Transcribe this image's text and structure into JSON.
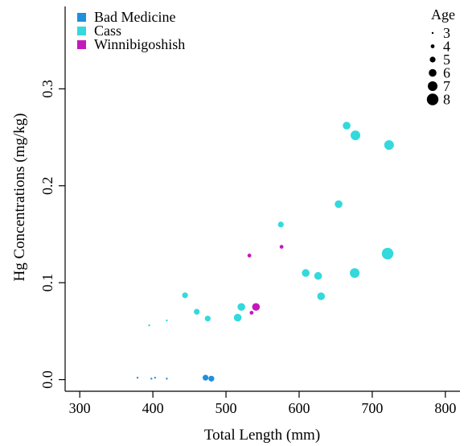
{
  "chart_data": {
    "type": "scatter",
    "xlabel": "Total Length (mm)",
    "ylabel": "Hg Concentrations (mg/kg)",
    "xlim": [
      280,
      820
    ],
    "ylim": [
      -0.012,
      0.385
    ],
    "xticks": [
      300,
      400,
      500,
      600,
      700,
      800
    ],
    "yticks": [
      0.0,
      0.1,
      0.2,
      0.3
    ],
    "xtick_labels": [
      "300",
      "400",
      "500",
      "600",
      "700",
      "800"
    ],
    "ytick_labels": [
      "0.0",
      "0.1",
      "0.2",
      "0.3"
    ],
    "grid": false,
    "legend_position": "top-left",
    "size_legend": {
      "title": "Age",
      "position": "top-right",
      "values": [
        3,
        4,
        5,
        6,
        7,
        8
      ],
      "labels": [
        "3",
        "4",
        "5",
        "6",
        "7",
        "8"
      ]
    },
    "series": [
      {
        "name": "Bad Medicine",
        "color": "#1f8fde",
        "points": [
          {
            "x": 379,
            "y": 0.002,
            "age": 3
          },
          {
            "x": 398,
            "y": 0.001,
            "age": 3
          },
          {
            "x": 403,
            "y": 0.002,
            "age": 3
          },
          {
            "x": 419,
            "y": 0.001,
            "age": 3
          },
          {
            "x": 472,
            "y": 0.002,
            "age": 5
          },
          {
            "x": 480,
            "y": 0.001,
            "age": 5
          }
        ]
      },
      {
        "name": "Cass",
        "color": "#33d9dc",
        "points": [
          {
            "x": 395,
            "y": 0.056,
            "age": 3
          },
          {
            "x": 419,
            "y": 0.061,
            "age": 3
          },
          {
            "x": 444,
            "y": 0.087,
            "age": 5
          },
          {
            "x": 460,
            "y": 0.07,
            "age": 5
          },
          {
            "x": 475,
            "y": 0.063,
            "age": 5
          },
          {
            "x": 516,
            "y": 0.064,
            "age": 6
          },
          {
            "x": 521,
            "y": 0.075,
            "age": 6
          },
          {
            "x": 575,
            "y": 0.16,
            "age": 5
          },
          {
            "x": 609,
            "y": 0.11,
            "age": 6
          },
          {
            "x": 626,
            "y": 0.107,
            "age": 6
          },
          {
            "x": 630,
            "y": 0.086,
            "age": 6
          },
          {
            "x": 654,
            "y": 0.181,
            "age": 6
          },
          {
            "x": 665,
            "y": 0.262,
            "age": 6
          },
          {
            "x": 677,
            "y": 0.252,
            "age": 7
          },
          {
            "x": 676,
            "y": 0.11,
            "age": 7
          },
          {
            "x": 723,
            "y": 0.242,
            "age": 7
          },
          {
            "x": 721,
            "y": 0.13,
            "age": 8
          }
        ]
      },
      {
        "name": "Winnibigoshish",
        "color": "#c418bf",
        "points": [
          {
            "x": 532,
            "y": 0.128,
            "age": 4
          },
          {
            "x": 576,
            "y": 0.137,
            "age": 4
          },
          {
            "x": 535,
            "y": 0.069,
            "age": 4
          },
          {
            "x": 541,
            "y": 0.075,
            "age": 6
          }
        ]
      }
    ]
  }
}
